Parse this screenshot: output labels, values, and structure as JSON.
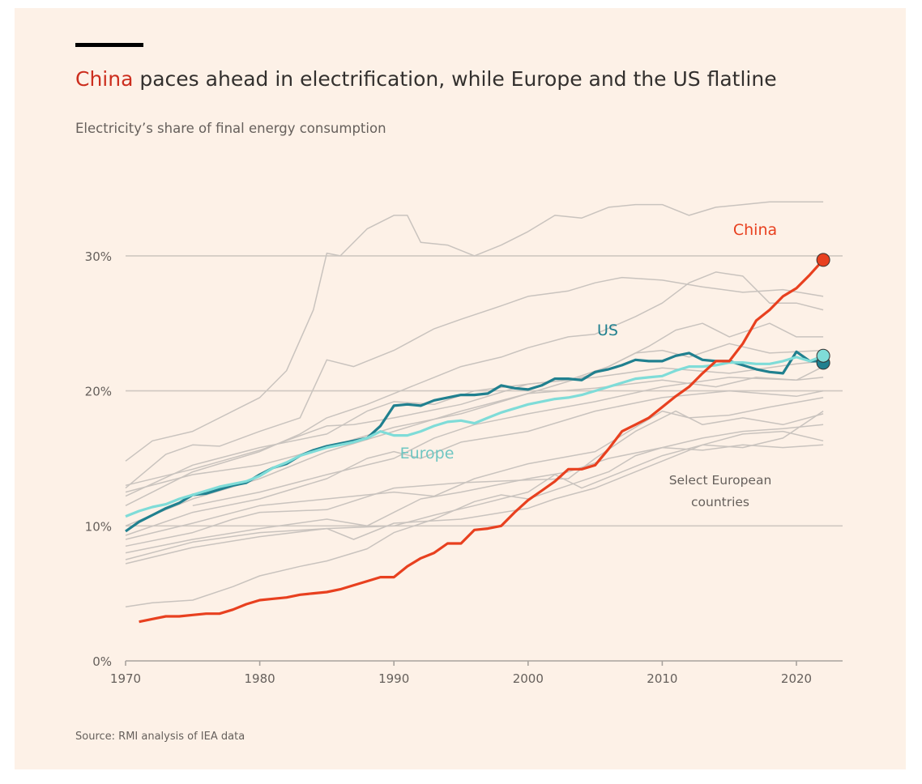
{
  "header": {
    "title_highlight": "China",
    "title_rest": " paces ahead in electrification, while Europe and the US flatline",
    "subtitle": "Electricity’s share of final energy consumption"
  },
  "footer": {
    "source": "Source: RMI analysis of IEA data"
  },
  "colors": {
    "china": "#e8401f",
    "us": "#20808f",
    "europe": "#7fdcd8",
    "countries": "#c9c3be",
    "grid": "#cfc8c1",
    "title_highlight": "#cc2e1e"
  },
  "chart_data": {
    "type": "line",
    "title": "China paces ahead in electrification, while Europe and the US flatline",
    "subtitle": "Electricity’s share of final energy consumption",
    "xlabel": "",
    "ylabel": "",
    "xlim": [
      1970,
      2023
    ],
    "ylim": [
      0,
      35
    ],
    "x_ticks": [
      "1970",
      "1980",
      "1990",
      "2000",
      "2010",
      "2020"
    ],
    "y_ticks": [
      "0%",
      "10%",
      "20%",
      "30%"
    ],
    "grid": "horizontal",
    "annotations": {
      "china": "China",
      "us": "US",
      "europe": "Europe",
      "countries_1": "Select European",
      "countries_2": "countries"
    },
    "series": [
      {
        "name": "China",
        "x": [
          1971,
          1972,
          1973,
          1974,
          1975,
          1976,
          1977,
          1978,
          1979,
          1980,
          1981,
          1982,
          1983,
          1984,
          1985,
          1986,
          1987,
          1988,
          1989,
          1990,
          1991,
          1992,
          1993,
          1994,
          1995,
          1996,
          1997,
          1998,
          1999,
          2000,
          2001,
          2002,
          2003,
          2004,
          2005,
          2006,
          2007,
          2008,
          2009,
          2010,
          2011,
          2012,
          2013,
          2014,
          2015,
          2016,
          2017,
          2018,
          2019,
          2020,
          2021,
          2022
        ],
        "values": [
          2.9,
          3.1,
          3.3,
          3.3,
          3.4,
          3.5,
          3.5,
          3.8,
          4.2,
          4.5,
          4.6,
          4.7,
          4.9,
          5.0,
          5.1,
          5.3,
          5.6,
          5.9,
          6.2,
          6.2,
          7.0,
          7.6,
          8.0,
          8.7,
          8.7,
          9.7,
          9.8,
          10.0,
          11.0,
          11.9,
          12.6,
          13.3,
          14.2,
          14.2,
          14.5,
          15.7,
          17.0,
          17.5,
          18.0,
          18.8,
          19.6,
          20.3,
          21.3,
          22.2,
          22.2,
          23.5,
          25.2,
          26.0,
          27.0,
          27.6,
          28.6,
          29.7
        ]
      },
      {
        "name": "US",
        "x": [
          1970,
          1971,
          1972,
          1973,
          1974,
          1975,
          1976,
          1977,
          1978,
          1979,
          1980,
          1981,
          1982,
          1983,
          1984,
          1985,
          1986,
          1987,
          1988,
          1989,
          1990,
          1991,
          1992,
          1993,
          1994,
          1995,
          1996,
          1997,
          1998,
          1999,
          2000,
          2001,
          2002,
          2003,
          2004,
          2005,
          2006,
          2007,
          2008,
          2009,
          2010,
          2011,
          2012,
          2013,
          2014,
          2015,
          2016,
          2017,
          2018,
          2019,
          2020,
          2021,
          2022
        ],
        "values": [
          9.6,
          10.3,
          10.8,
          11.3,
          11.7,
          12.3,
          12.4,
          12.7,
          13.0,
          13.2,
          13.8,
          14.3,
          14.6,
          15.2,
          15.6,
          15.9,
          16.1,
          16.3,
          16.5,
          17.4,
          18.9,
          19.0,
          18.9,
          19.3,
          19.5,
          19.7,
          19.7,
          19.8,
          20.4,
          20.2,
          20.1,
          20.4,
          20.9,
          20.9,
          20.8,
          21.4,
          21.6,
          21.9,
          22.3,
          22.2,
          22.2,
          22.6,
          22.8,
          22.3,
          22.2,
          22.2,
          21.9,
          21.6,
          21.4,
          21.3,
          22.9,
          22.2,
          22.2
        ]
      },
      {
        "name": "Europe",
        "x": [
          1970,
          1971,
          1972,
          1973,
          1974,
          1975,
          1976,
          1977,
          1978,
          1979,
          1980,
          1981,
          1982,
          1983,
          1984,
          1985,
          1986,
          1987,
          1988,
          1989,
          1990,
          1991,
          1992,
          1993,
          1994,
          1995,
          1996,
          1997,
          1998,
          1999,
          2000,
          2001,
          2002,
          2003,
          2004,
          2005,
          2006,
          2007,
          2008,
          2009,
          2010,
          2011,
          2012,
          2013,
          2014,
          2015,
          2016,
          2017,
          2018,
          2019,
          2020,
          2021,
          2022
        ],
        "values": [
          10.7,
          11.1,
          11.4,
          11.6,
          12.0,
          12.3,
          12.6,
          12.9,
          13.1,
          13.3,
          13.7,
          14.3,
          14.7,
          15.2,
          15.5,
          15.8,
          16.0,
          16.2,
          16.5,
          17.0,
          16.7,
          16.7,
          17.0,
          17.4,
          17.7,
          17.8,
          17.6,
          18.0,
          18.4,
          18.7,
          19.0,
          19.2,
          19.4,
          19.5,
          19.7,
          20.0,
          20.3,
          20.6,
          20.9,
          21.0,
          21.1,
          21.5,
          21.8,
          21.8,
          21.9,
          22.1,
          22.1,
          22.0,
          22.0,
          22.2,
          22.5,
          22.2,
          22.6
        ]
      }
    ],
    "country_series": [
      {
        "x": [
          1970,
          1972,
          1975,
          1978,
          1980,
          1982,
          1984,
          1985,
          1986,
          1988,
          1990,
          1991,
          1992,
          1994,
          1996,
          1998,
          2000,
          2002,
          2004,
          2006,
          2008,
          2010,
          2012,
          2014,
          2016,
          2018,
          2020,
          2022
        ],
        "values": [
          14.8,
          16.3,
          17.0,
          18.5,
          19.5,
          21.5,
          26,
          30.2,
          30.0,
          32.0,
          33.0,
          33.0,
          31.0,
          30.8,
          30.0,
          30.8,
          31.8,
          33.0,
          32.8,
          33.6,
          33.8,
          33.8,
          33.0,
          33.6,
          33.8,
          34.0,
          34.0,
          34.0
        ]
      },
      {
        "x": [
          1970,
          1973,
          1975,
          1977,
          1980,
          1983,
          1985,
          1987,
          1990,
          1993,
          1995,
          1998,
          2000,
          2003,
          2005,
          2007,
          2010,
          2013,
          2016,
          2019,
          2022
        ],
        "values": [
          12.8,
          15.3,
          16.0,
          15.9,
          17.0,
          18.0,
          22.3,
          21.8,
          23.0,
          24.6,
          25.3,
          26.3,
          27.0,
          27.4,
          28.0,
          28.4,
          28.2,
          27.7,
          27.3,
          27.5,
          27.0
        ]
      },
      {
        "x": [
          1970,
          1975,
          1980,
          1983,
          1985,
          1988,
          1990,
          1993,
          1995,
          1998,
          2000,
          2003,
          2005,
          2008,
          2010,
          2012,
          2014,
          2016,
          2018,
          2020,
          2022
        ],
        "values": [
          11.5,
          14.0,
          15.5,
          16.8,
          18.0,
          19.0,
          19.8,
          21.0,
          21.8,
          22.5,
          23.2,
          24.0,
          24.2,
          25.5,
          26.5,
          28.0,
          28.8,
          28.5,
          26.5,
          26.5,
          26.0
        ]
      },
      {
        "x": [
          1970,
          1975,
          1980,
          1985,
          1988,
          1990,
          1993,
          1996,
          2000,
          2003,
          2006,
          2009,
          2011,
          2013,
          2015,
          2018,
          2020,
          2022
        ],
        "values": [
          12.2,
          14.5,
          15.8,
          16.8,
          18.5,
          19.2,
          19.0,
          20.0,
          20.5,
          20.8,
          21.8,
          23.3,
          24.5,
          25.0,
          24.0,
          25.0,
          24.0,
          24.0
        ]
      },
      {
        "x": [
          1970,
          1975,
          1980,
          1985,
          1987,
          1990,
          1995,
          2000,
          2005,
          2010,
          2015,
          2020,
          2022
        ],
        "values": [
          13.0,
          14.2,
          15.6,
          17.4,
          17.5,
          18.0,
          19.0,
          20.5,
          21.0,
          21.7,
          21.3,
          22.0,
          22.2
        ]
      },
      {
        "x": [
          1970,
          1975,
          1980,
          1985,
          1990,
          1995,
          2000,
          2005,
          2010,
          2014,
          2017,
          2020,
          2022
        ],
        "values": [
          12.5,
          13.8,
          14.5,
          15.8,
          17.3,
          18.3,
          19.8,
          20.2,
          20.8,
          20.3,
          21.0,
          20.8,
          21.8
        ]
      },
      {
        "x": [
          1970,
          1975,
          1980,
          1985,
          1988,
          1990,
          1992,
          1995,
          2000,
          2005,
          2010,
          2015,
          2020,
          2022
        ],
        "values": [
          9.3,
          11.0,
          12.0,
          13.5,
          15.0,
          15.5,
          15.0,
          16.2,
          17.0,
          18.5,
          19.5,
          20.0,
          19.6,
          20.0
        ]
      },
      {
        "x": [
          1970,
          1975,
          1980,
          1985,
          1990,
          1993,
          1996,
          2000,
          2005,
          2010,
          2012,
          2015,
          2018,
          2022
        ],
        "values": [
          9.0,
          10.2,
          11.5,
          12.0,
          12.5,
          12.2,
          13.5,
          14.6,
          15.5,
          18.5,
          18.0,
          18.2,
          18.8,
          19.5
        ]
      },
      {
        "x": [
          1970,
          1975,
          1978,
          1980,
          1985,
          1990,
          1995,
          2000,
          2003,
          2005,
          2008,
          2011,
          2013,
          2016,
          2019,
          2022
        ],
        "values": [
          8.5,
          9.5,
          10.5,
          11.0,
          11.2,
          12.8,
          13.2,
          13.4,
          13.5,
          15.0,
          17.0,
          18.5,
          17.5,
          18.0,
          17.5,
          18.3
        ]
      },
      {
        "x": [
          1970,
          1975,
          1980,
          1985,
          1988,
          1990,
          1992,
          1995,
          2000,
          2003,
          2006,
          2010,
          2013,
          2016,
          2019,
          2022
        ],
        "values": [
          8.0,
          9.0,
          9.8,
          10.5,
          10.0,
          11.0,
          12.0,
          12.5,
          13.5,
          14.0,
          15.0,
          15.8,
          16.5,
          17.0,
          17.2,
          17.5
        ]
      },
      {
        "x": [
          1970,
          1975,
          1980,
          1985,
          1987,
          1990,
          1995,
          2000,
          2002,
          2005,
          2008,
          2010,
          2013,
          2016,
          2019,
          2022
        ],
        "values": [
          7.5,
          8.8,
          9.5,
          9.8,
          9.0,
          10.2,
          10.5,
          11.3,
          12.0,
          12.8,
          14.0,
          14.8,
          16.0,
          16.8,
          17.0,
          16.3
        ]
      },
      {
        "x": [
          1970,
          1975,
          1980,
          1985,
          1990,
          1993,
          1996,
          2000,
          2002,
          2004,
          2007,
          2010,
          2013,
          2016,
          2019,
          2022
        ],
        "values": [
          7.2,
          8.4,
          9.2,
          9.8,
          10.0,
          10.8,
          11.5,
          12.5,
          13.8,
          12.8,
          14.0,
          15.2,
          16.0,
          15.8,
          16.5,
          18.5
        ]
      },
      {
        "x": [
          1970,
          1972,
          1975,
          1978,
          1980,
          1983,
          1985,
          1988,
          1990,
          1993,
          1996,
          1998,
          2000,
          2003,
          2006,
          2008,
          2010,
          2013,
          2016,
          2019,
          2022
        ],
        "values": [
          4.0,
          4.3,
          4.5,
          5.5,
          6.3,
          7.0,
          7.4,
          8.3,
          9.5,
          10.5,
          11.8,
          12.3,
          12.0,
          13.0,
          14.0,
          15.2,
          15.8,
          15.6,
          16.0,
          15.8,
          16.0
        ]
      },
      {
        "x": [
          1970,
          1975,
          1980,
          1985,
          1990,
          1995,
          2000,
          2005,
          2008,
          2010,
          2012,
          2015,
          2018,
          2022
        ],
        "values": [
          10.0,
          12.0,
          13.5,
          15.5,
          17.0,
          18.5,
          19.8,
          21.3,
          22.8,
          23.0,
          22.5,
          23.5,
          22.8,
          23.0
        ]
      },
      {
        "x": [
          1975,
          1980,
          1985,
          1990,
          1993,
          1996,
          2000,
          2005,
          2010,
          2015,
          2020,
          2022
        ],
        "values": [
          11.5,
          12.5,
          13.8,
          15.0,
          16.5,
          17.5,
          18.3,
          19.2,
          20.3,
          21.0,
          20.8,
          21.0
        ]
      }
    ]
  }
}
